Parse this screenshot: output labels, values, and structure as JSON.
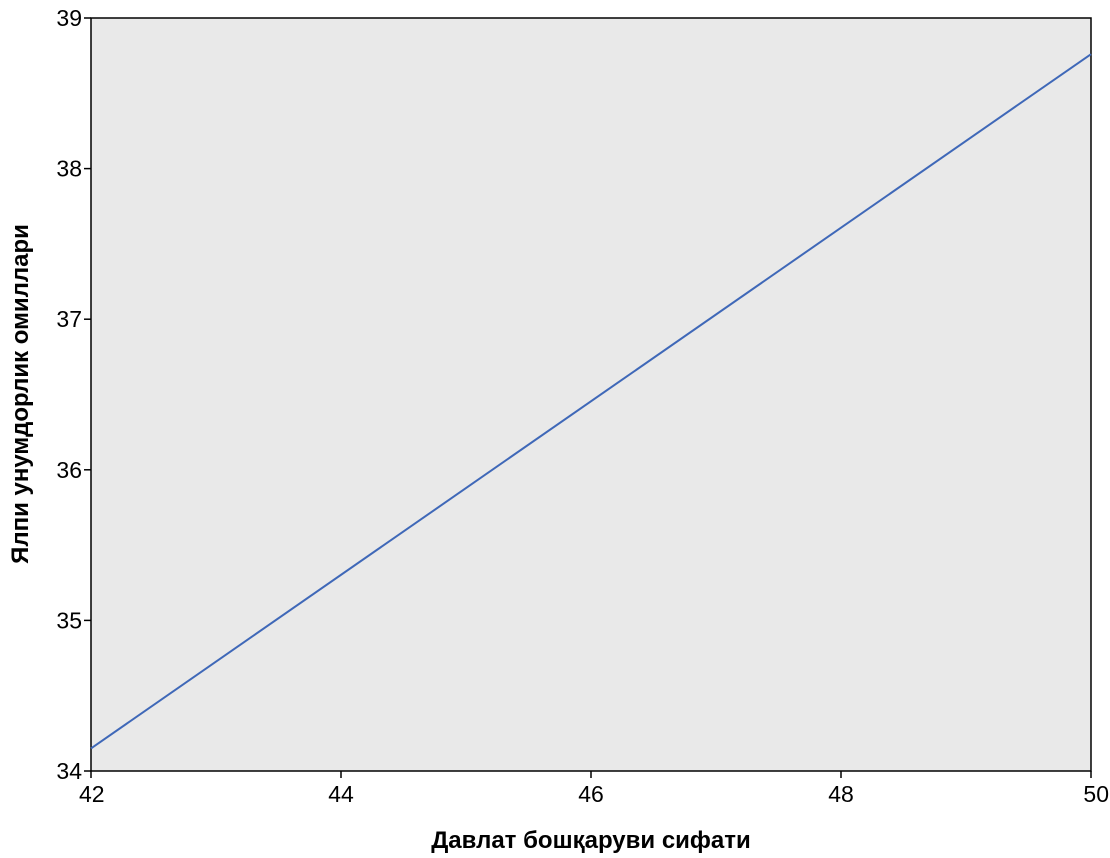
{
  "chart_data": {
    "type": "line",
    "xlabel": "Давлат бошқаруви сифати",
    "ylabel": "Ялпи унумдорлик омиллари",
    "xlim": [
      42,
      50
    ],
    "ylim": [
      34,
      39
    ],
    "x_ticks": [
      "42",
      "44",
      "46",
      "48",
      "50"
    ],
    "y_ticks": [
      "34",
      "35",
      "36",
      "37",
      "38",
      "39"
    ],
    "grid": false,
    "legend": "none",
    "series": [
      {
        "x": [
          42,
          50
        ],
        "y": [
          34.15,
          38.76
        ]
      }
    ],
    "colors": {
      "line": "#3f68b8",
      "plot_background": "#e9e9e9",
      "axis": "#000000"
    }
  }
}
